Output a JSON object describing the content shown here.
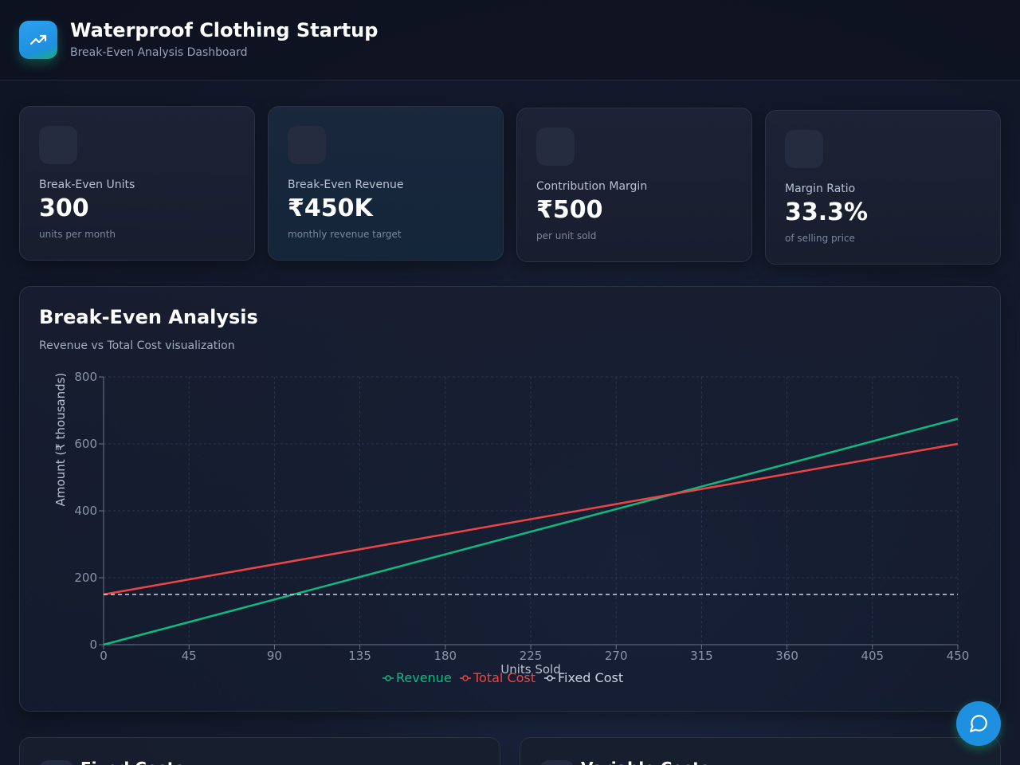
{
  "header": {
    "title": "Waterproof Clothing Startup",
    "subtitle": "Break-Even Analysis Dashboard",
    "logo_icon": "trending-up-icon"
  },
  "kpis": [
    {
      "label": "Break-Even Units",
      "value": "300",
      "note": "units per month"
    },
    {
      "label": "Break-Even Revenue",
      "value": "₹450K",
      "note": "monthly revenue target"
    },
    {
      "label": "Contribution Margin",
      "value": "₹500",
      "note": "per unit sold"
    },
    {
      "label": "Margin Ratio",
      "value": "33.3%",
      "note": "of selling price"
    }
  ],
  "chart_card": {
    "title": "Break-Even Analysis",
    "subtitle": "Revenue vs Total Cost visualization"
  },
  "chart_data": {
    "type": "line",
    "xlabel": "Units Sold",
    "ylabel": "Amount (₹ thousands)",
    "x": [
      0,
      450
    ],
    "xlim": [
      0,
      450
    ],
    "ylim": [
      0,
      800
    ],
    "xticks": [
      0,
      45,
      90,
      135,
      180,
      225,
      270,
      315,
      360,
      405,
      450
    ],
    "yticks": [
      0,
      200,
      400,
      600,
      800
    ],
    "grid": true,
    "legend": "bottom-center",
    "series": [
      {
        "name": "Revenue",
        "values": [
          0,
          675
        ],
        "color": "#10b981",
        "style": "solid"
      },
      {
        "name": "Total Cost",
        "values": [
          150,
          600
        ],
        "color": "#ef4444",
        "style": "solid"
      },
      {
        "name": "Fixed Cost",
        "values": [
          150,
          150
        ],
        "color": "#cbd5e1",
        "style": "dashed"
      }
    ]
  },
  "lower_cards": [
    {
      "title": "Fixed Costs"
    },
    {
      "title": "Variable Costs"
    }
  ],
  "fab": {
    "icon": "chat-bubble-icon"
  }
}
